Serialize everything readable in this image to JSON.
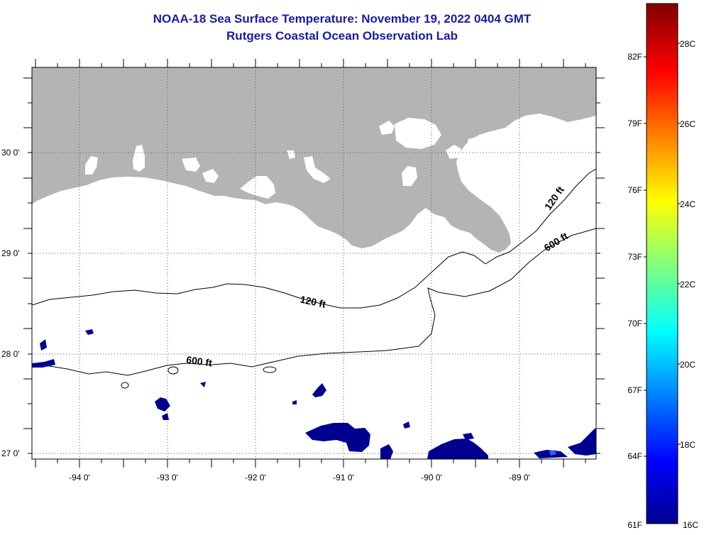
{
  "header": {
    "title": "NOAA-18 Sea Surface Temperature:  November 19, 2022 0404 GMT",
    "subtitle": "Rutgers Coastal Ocean Observation Lab"
  },
  "map": {
    "lat_labels": [
      {
        "text": "30 0'",
        "lat": 30
      },
      {
        "text": "29 0'",
        "lat": 29
      },
      {
        "text": "28 0'",
        "lat": 28
      },
      {
        "text": "27 0'",
        "lat": 27
      }
    ],
    "lon_labels": [
      {
        "text": "-94 0'",
        "lon": -94
      },
      {
        "text": "-93 0'",
        "lon": -93
      },
      {
        "text": "-92 0'",
        "lon": -92
      },
      {
        "text": "-91 0'",
        "lon": -91
      },
      {
        "text": "-90 0'",
        "lon": -90
      },
      {
        "text": "-89 0'",
        "lon": -89
      }
    ],
    "contours": [
      {
        "label": "120 ft"
      },
      {
        "label": "120 ft"
      },
      {
        "label": "600 ft"
      },
      {
        "label": "600 ft"
      }
    ],
    "colors": {
      "land": "#b4b4b4",
      "cold_water": "#00008f",
      "title": "#1a1aa6"
    }
  },
  "colorbar": {
    "fahrenheit_labels": [
      "82F",
      "79F",
      "76F",
      "73F",
      "70F",
      "67F",
      "64F",
      "61F"
    ],
    "celsius_labels": [
      "28C",
      "26C",
      "24C",
      "22C",
      "20C",
      "18C",
      "16C"
    ],
    "colors": [
      "#00008f",
      "#0000ff",
      "#00ffff",
      "#ffff00",
      "#ff0000",
      "#800000"
    ]
  }
}
